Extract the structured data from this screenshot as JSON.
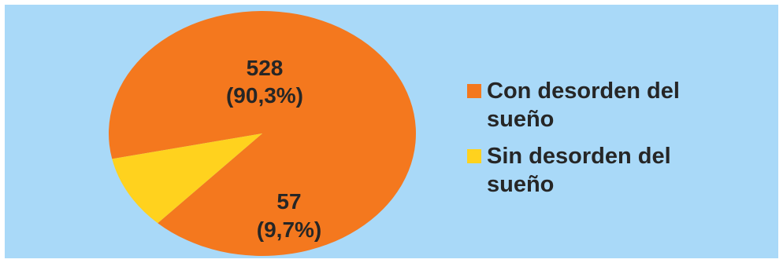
{
  "chart_data": {
    "type": "pie",
    "title": "",
    "start_angle_deg": 168,
    "slices": [
      {
        "name": "Con desorden del sueño",
        "value": 528,
        "percent_label": "(90,3%)",
        "count_label": "528",
        "color": "#f4781e"
      },
      {
        "name": "Sin desorden del sueño",
        "value": 57,
        "percent_label": "(9,7%)",
        "count_label": "57",
        "color": "#ffd21e"
      }
    ],
    "legend": {
      "placement": "right",
      "entries": [
        {
          "line1": "Con desorden del",
          "line2": "sueño",
          "color": "#f4781e"
        },
        {
          "line1": "Sin desorden del",
          "line2": "sueño",
          "color": "#ffd21e"
        }
      ]
    }
  },
  "colors": {
    "background": "#a9d9f8"
  }
}
